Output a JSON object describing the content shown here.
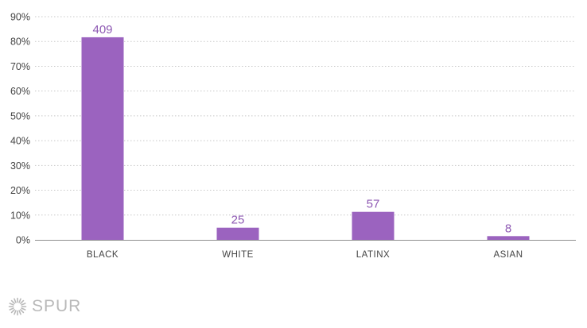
{
  "chart_data": {
    "type": "bar",
    "categories": [
      "BLACK",
      "WHITE",
      "LATINX",
      "ASIAN"
    ],
    "values": [
      81.7,
      4.9,
      11.3,
      1.5
    ],
    "data_labels": [
      "409",
      "25",
      "57",
      "8"
    ],
    "yticks": [
      "0%",
      "10%",
      "20%",
      "30%",
      "40%",
      "50%",
      "60%",
      "70%",
      "80%",
      "90%"
    ],
    "ylim": [
      0,
      90
    ],
    "grid": true,
    "title": "",
    "xlabel": "",
    "ylabel": ""
  },
  "colors": {
    "bar": "#9b63bf",
    "data_label": "#8e59b3",
    "axis_text": "#444444",
    "grid": "#c8c8c8",
    "logo": "#b9b9b9"
  },
  "logo": {
    "text": "SPUR",
    "icon": "sunburst-icon"
  }
}
